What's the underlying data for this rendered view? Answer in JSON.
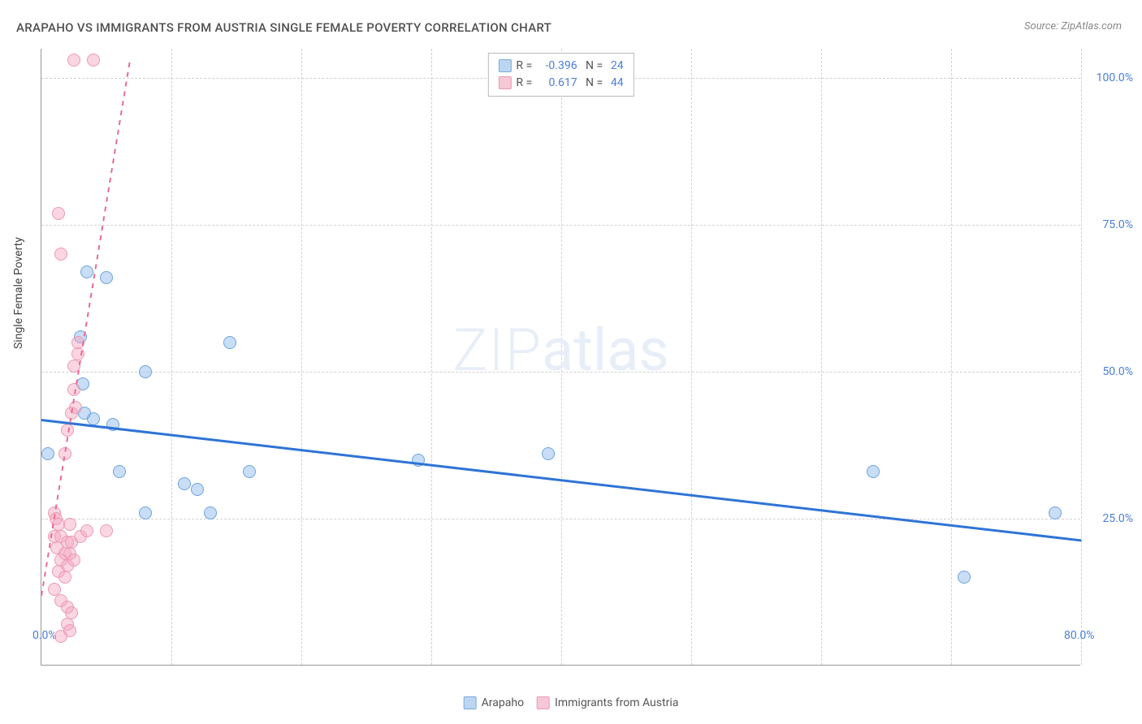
{
  "title": "ARAPAHO VS IMMIGRANTS FROM AUSTRIA SINGLE FEMALE POVERTY CORRELATION CHART",
  "source_label": "Source: ",
  "source_value": "ZipAtlas.com",
  "ylabel": "Single Female Poverty",
  "watermark_a": "ZIP",
  "watermark_b": "atlas",
  "chart": {
    "type": "scatter",
    "xlim": [
      0,
      80
    ],
    "ylim": [
      0,
      105
    ],
    "xticks": [
      {
        "v": 0,
        "label": "0.0%"
      },
      {
        "v": 80,
        "label": "80.0%"
      }
    ],
    "xgrid": [
      10,
      20,
      30,
      40,
      50,
      60,
      70,
      80
    ],
    "yticks": [
      {
        "v": 25,
        "label": "25.0%"
      },
      {
        "v": 50,
        "label": "50.0%"
      },
      {
        "v": 75,
        "label": "75.0%"
      },
      {
        "v": 100,
        "label": "100.0%"
      }
    ],
    "background_color": "#ffffff",
    "grid_color": "#d0d0d0",
    "axis_color": "#999999",
    "series": [
      {
        "id": "arapaho",
        "label": "Arapaho",
        "color_fill": "rgba(135,180,235,0.45)",
        "color_stroke": "#6ca4de",
        "swatch_fill": "#bcd6f2",
        "swatch_stroke": "#7aa9dd",
        "marker_radius": 8,
        "R": "-0.396",
        "N": "24",
        "trend": {
          "x1": 0,
          "y1": 42,
          "x2": 80,
          "y2": 21.5,
          "color": "#2e74d6",
          "width": 2.5,
          "dash": false
        },
        "points": [
          [
            0.5,
            36
          ],
          [
            3.5,
            67
          ],
          [
            5,
            66
          ],
          [
            3,
            56
          ],
          [
            3.2,
            48
          ],
          [
            3.3,
            43
          ],
          [
            4,
            42
          ],
          [
            5.5,
            41
          ],
          [
            8,
            50
          ],
          [
            14.5,
            55
          ],
          [
            6,
            33
          ],
          [
            8,
            26
          ],
          [
            11,
            31
          ],
          [
            12,
            30
          ],
          [
            13,
            26
          ],
          [
            16,
            33
          ],
          [
            29,
            35
          ],
          [
            39,
            36
          ],
          [
            64,
            33
          ],
          [
            71,
            15
          ],
          [
            78,
            26
          ]
        ]
      },
      {
        "id": "austria",
        "label": "Immigrants from Austria",
        "color_fill": "rgba(245,165,190,0.45)",
        "color_stroke": "#ec9ab2",
        "swatch_fill": "#f6c8d6",
        "swatch_stroke": "#ec9ab2",
        "marker_radius": 8,
        "R": "0.617",
        "N": "44",
        "trend": {
          "x1": 0,
          "y1": 12,
          "x2": 6.8,
          "y2": 103,
          "color": "#e86c93",
          "width": 2,
          "dash": true
        },
        "points": [
          [
            2.5,
            103
          ],
          [
            4,
            103
          ],
          [
            1.3,
            77
          ],
          [
            1.5,
            70
          ],
          [
            2.8,
            55
          ],
          [
            2.8,
            53
          ],
          [
            2.5,
            51
          ],
          [
            2.5,
            47
          ],
          [
            2.6,
            44
          ],
          [
            2.3,
            43
          ],
          [
            2,
            40
          ],
          [
            1.8,
            36
          ],
          [
            1,
            26
          ],
          [
            1.1,
            25
          ],
          [
            1.3,
            24
          ],
          [
            1,
            22
          ],
          [
            1.5,
            22
          ],
          [
            2,
            21
          ],
          [
            2.3,
            21
          ],
          [
            3,
            22
          ],
          [
            3.5,
            23
          ],
          [
            5,
            23
          ],
          [
            1.2,
            20
          ],
          [
            1.8,
            19
          ],
          [
            2.2,
            19
          ],
          [
            1.5,
            18
          ],
          [
            2,
            17
          ],
          [
            1.3,
            16
          ],
          [
            1.8,
            15
          ],
          [
            2.5,
            18
          ],
          [
            1,
            13
          ],
          [
            1.5,
            11
          ],
          [
            2,
            10
          ],
          [
            2.3,
            9
          ],
          [
            2,
            7
          ],
          [
            2.2,
            6
          ],
          [
            1.5,
            5
          ],
          [
            2.2,
            24
          ]
        ]
      }
    ]
  }
}
